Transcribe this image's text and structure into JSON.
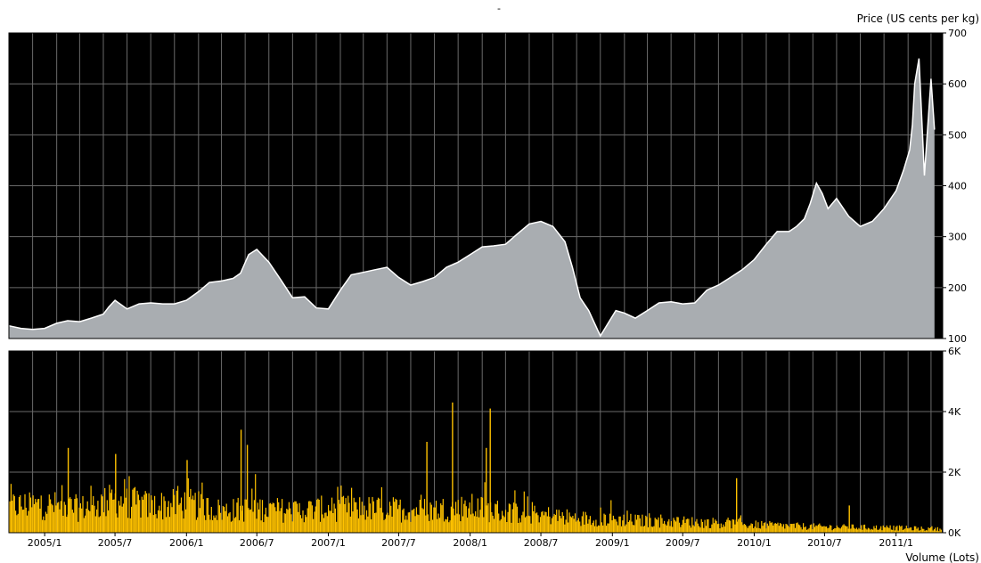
{
  "chart_data": [
    {
      "type": "area",
      "top_mark": "-",
      "ylabel": "Price (US cents per kg)",
      "ylim": [
        100,
        700
      ],
      "y_ticks": [
        "700",
        "600",
        "500",
        "400",
        "300",
        "200",
        "100"
      ],
      "y_tick_values": [
        700,
        600,
        500,
        400,
        300,
        200,
        100
      ],
      "grid": true,
      "background": "#000000",
      "fill_color": "#a9adb1",
      "line_color": "#ffffff",
      "x_range": [
        "2004-10-01",
        "2011-05-01"
      ],
      "series": [
        {
          "x": [
            "2004-10-01",
            "2004-11-01",
            "2004-12-01",
            "2005-01-01",
            "2005-02-01",
            "2005-03-01",
            "2005-04-01",
            "2005-05-01",
            "2005-06-01",
            "2005-06-15",
            "2005-07-01",
            "2005-08-01",
            "2005-09-01",
            "2005-10-01",
            "2005-11-01",
            "2005-12-01",
            "2006-01-01",
            "2006-02-01",
            "2006-03-01",
            "2006-04-01",
            "2006-05-01",
            "2006-05-20",
            "2006-06-10",
            "2006-07-01",
            "2006-08-01",
            "2006-09-01",
            "2006-10-01",
            "2006-11-01",
            "2006-12-01",
            "2007-01-01",
            "2007-02-01",
            "2007-03-01",
            "2007-04-01",
            "2007-05-01",
            "2007-06-01",
            "2007-07-01",
            "2007-08-01",
            "2007-09-01",
            "2007-10-01",
            "2007-11-01",
            "2007-12-01",
            "2008-01-01",
            "2008-02-01",
            "2008-03-01",
            "2008-04-01",
            "2008-05-01",
            "2008-06-01",
            "2008-07-01",
            "2008-08-01",
            "2008-09-01",
            "2008-09-20",
            "2008-10-10",
            "2008-11-01",
            "2008-12-01",
            "2008-12-25",
            "2009-01-10",
            "2009-02-01",
            "2009-03-01",
            "2009-04-01",
            "2009-05-01",
            "2009-06-01",
            "2009-07-01",
            "2009-08-01",
            "2009-09-01",
            "2009-10-01",
            "2009-11-01",
            "2009-12-01",
            "2010-01-01",
            "2010-02-01",
            "2010-03-01",
            "2010-04-01",
            "2010-04-20",
            "2010-05-10",
            "2010-05-25",
            "2010-06-10",
            "2010-06-25",
            "2010-07-10",
            "2010-08-01",
            "2010-09-01",
            "2010-10-01",
            "2010-11-01",
            "2010-12-01",
            "2011-01-01",
            "2011-01-20",
            "2011-02-05",
            "2011-02-12",
            "2011-02-18",
            "2011-03-01",
            "2011-03-15",
            "2011-04-01",
            "2011-04-10"
          ],
          "values": [
            125,
            120,
            118,
            120,
            130,
            135,
            133,
            140,
            148,
            162,
            175,
            158,
            168,
            170,
            168,
            168,
            175,
            192,
            210,
            213,
            218,
            228,
            265,
            275,
            250,
            215,
            180,
            182,
            160,
            158,
            195,
            225,
            230,
            235,
            240,
            220,
            205,
            212,
            220,
            240,
            250,
            265,
            280,
            282,
            285,
            305,
            325,
            330,
            320,
            290,
            240,
            180,
            155,
            105,
            135,
            155,
            150,
            140,
            155,
            170,
            172,
            168,
            170,
            195,
            205,
            220,
            235,
            255,
            285,
            310,
            310,
            320,
            335,
            365,
            405,
            385,
            355,
            375,
            340,
            320,
            330,
            355,
            390,
            430,
            470,
            520,
            600,
            650,
            420,
            610,
            510
          ]
        }
      ]
    },
    {
      "type": "bar",
      "ylabel": "Volume (Lots)",
      "ylim": [
        0,
        6000
      ],
      "y_ticks": [
        "6K",
        "4K",
        "2K",
        "0K"
      ],
      "y_tick_values": [
        6000,
        4000,
        2000,
        0
      ],
      "grid": true,
      "background": "#000000",
      "bar_color": "#ffc200",
      "x_categories": [
        "2005/1",
        "2005/7",
        "2006/1",
        "2006/7",
        "2007/1",
        "2007/7",
        "2008/1",
        "2008/7",
        "2009/1",
        "2009/7",
        "2010/1",
        "2010/7",
        "2011/1"
      ],
      "x_category_dates": [
        "2005-01-01",
        "2005-07-01",
        "2006-01-01",
        "2006-07-01",
        "2007-01-01",
        "2007-07-01",
        "2008-01-01",
        "2008-07-01",
        "2009-01-01",
        "2009-07-01",
        "2010-01-01",
        "2010-07-01",
        "2011-01-01"
      ],
      "envelope": {
        "x": [
          "2004-10-01",
          "2005-01-01",
          "2005-04-01",
          "2005-07-01",
          "2005-10-01",
          "2006-01-01",
          "2006-04-01",
          "2006-07-01",
          "2006-10-01",
          "2007-01-01",
          "2007-04-01",
          "2007-07-01",
          "2007-10-01",
          "2008-01-01",
          "2008-04-01",
          "2008-07-01",
          "2008-10-01",
          "2009-01-01",
          "2009-04-01",
          "2009-07-01",
          "2009-10-01",
          "2010-01-01",
          "2010-04-01",
          "2010-07-01",
          "2010-10-01",
          "2011-01-01",
          "2011-04-10"
        ],
        "values": [
          1100,
          1150,
          1000,
          1350,
          1100,
          1200,
          900,
          1000,
          900,
          1000,
          1000,
          950,
          950,
          1050,
          850,
          750,
          600,
          550,
          480,
          450,
          400,
          330,
          280,
          240,
          220,
          200,
          150
        ]
      },
      "spikes": [
        {
          "x": "2005-03-01",
          "value": 2800
        },
        {
          "x": "2005-07-01",
          "value": 2600
        },
        {
          "x": "2006-01-01",
          "value": 2400
        },
        {
          "x": "2006-05-20",
          "value": 3400
        },
        {
          "x": "2006-06-05",
          "value": 2900
        },
        {
          "x": "2007-09-10",
          "value": 3000
        },
        {
          "x": "2007-11-15",
          "value": 4300
        },
        {
          "x": "2008-02-20",
          "value": 4100
        },
        {
          "x": "2008-02-10",
          "value": 2800
        },
        {
          "x": "2009-11-15",
          "value": 1800
        },
        {
          "x": "2010-09-01",
          "value": 900
        }
      ]
    }
  ]
}
